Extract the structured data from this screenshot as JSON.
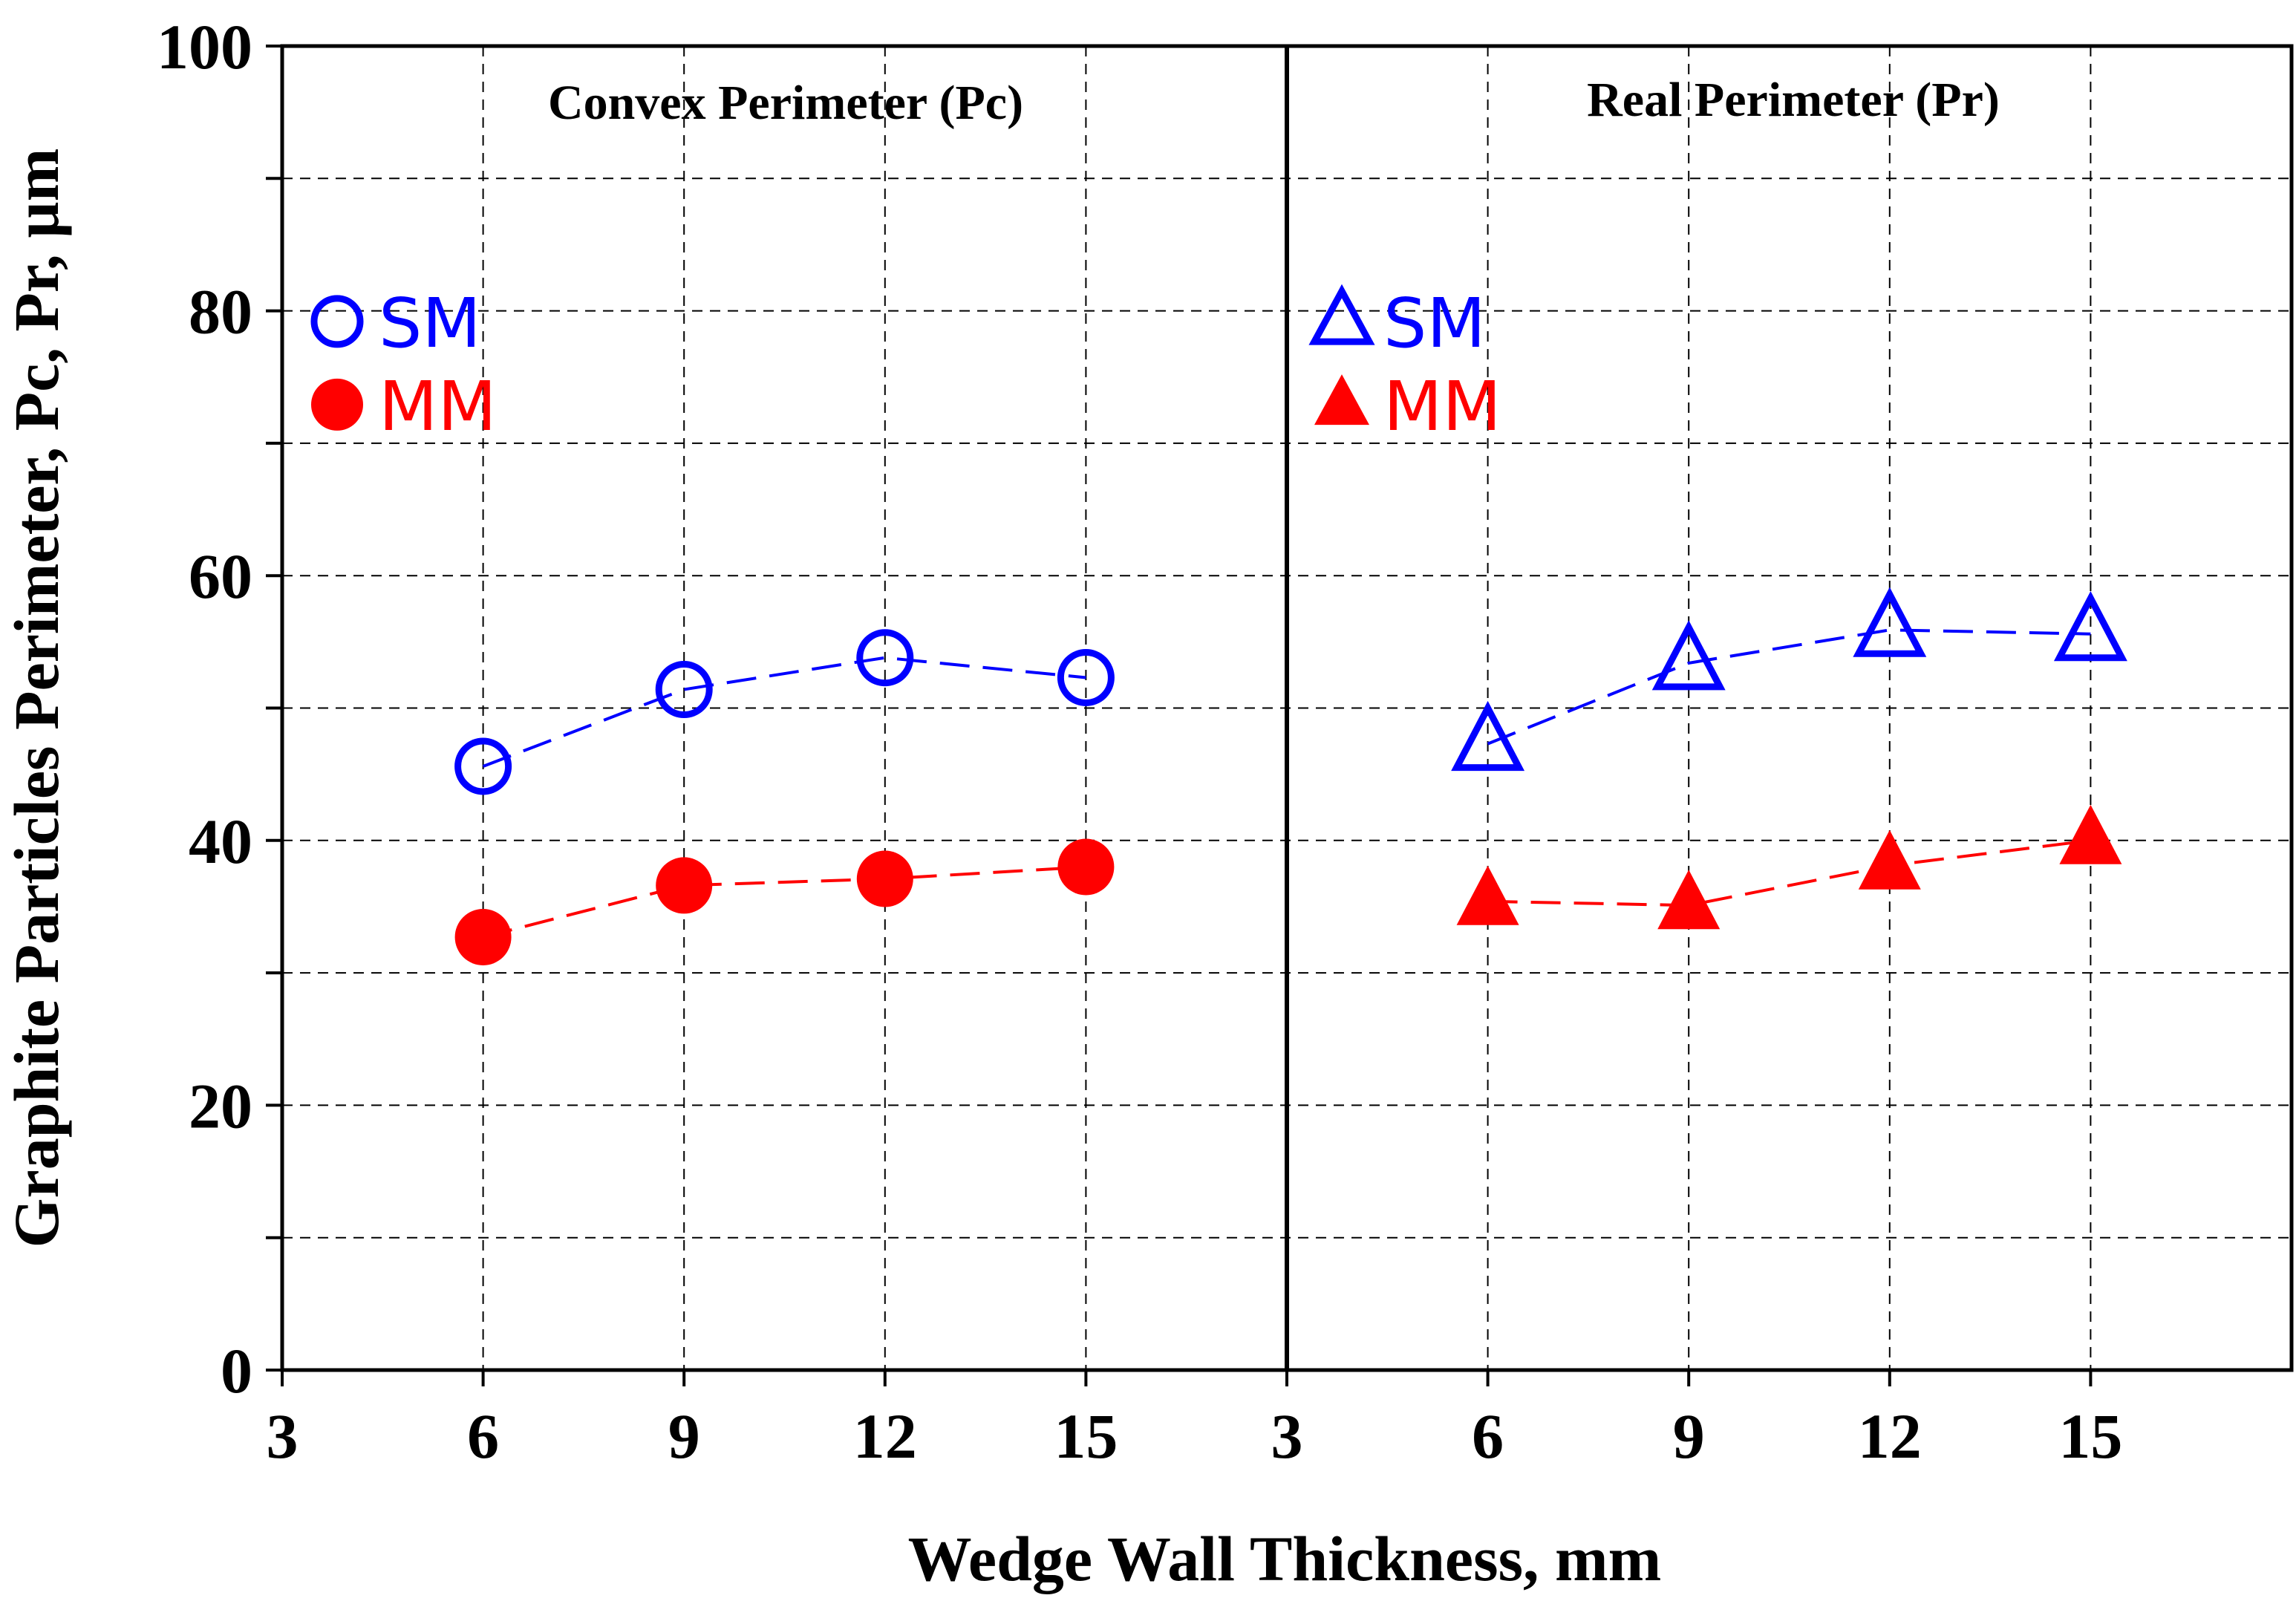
{
  "chart_data": {
    "type": "scatter",
    "ylabel": "Graphite Particles Perimeter, Pc, Pr, µm",
    "xlabel": "Wedge Wall Thickness, mm",
    "ylim": [
      0,
      100
    ],
    "yticks": [
      "0",
      "20",
      "40",
      "60",
      "80",
      "100"
    ],
    "grid": true,
    "panels": [
      {
        "title": "Convex Perimeter (Pc)",
        "xlim": [
          3,
          18
        ],
        "xticks": [
          "3",
          "6",
          "9",
          "12",
          "15"
        ],
        "marker": "circle",
        "legend": {
          "placement": "top-left",
          "entries": [
            "SM",
            "MM"
          ]
        },
        "series": [
          {
            "name": "SM",
            "color": "#0000ff",
            "filled": false,
            "x": [
              6,
              9,
              12,
              15
            ],
            "values": [
              45.6,
              51.4,
              53.8,
              52.3
            ]
          },
          {
            "name": "MM",
            "color": "#ff0000",
            "filled": true,
            "x": [
              6,
              9,
              12,
              15
            ],
            "values": [
              32.7,
              36.6,
              37.1,
              38.0
            ]
          }
        ]
      },
      {
        "title": "Real Perimeter (Pr)",
        "xlim": [
          3,
          18
        ],
        "xticks": [
          "3",
          "6",
          "9",
          "12",
          "15"
        ],
        "marker": "triangle",
        "legend": {
          "placement": "top-left",
          "entries": [
            "SM",
            "MM"
          ]
        },
        "series": [
          {
            "name": "SM",
            "color": "#0000ff",
            "filled": false,
            "x": [
              6,
              9,
              12,
              15
            ],
            "values": [
              47.3,
              53.4,
              55.9,
              55.6
            ]
          },
          {
            "name": "MM",
            "color": "#ff0000",
            "filled": true,
            "x": [
              6,
              9,
              12,
              15
            ],
            "values": [
              35.4,
              35.1,
              38.1,
              40.0
            ]
          }
        ]
      }
    ]
  }
}
